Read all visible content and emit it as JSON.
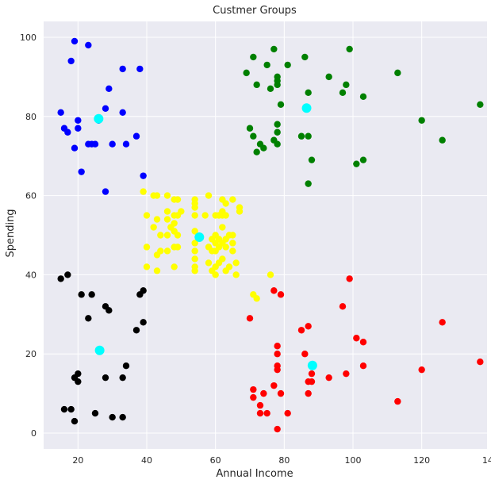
{
  "chart_data": {
    "type": "scatter",
    "title": "Custmer Groups",
    "xlabel": "Annual Income",
    "ylabel": "Spending",
    "xlim": [
      10,
      139
    ],
    "ylim": [
      -4,
      104
    ],
    "xticks": [
      20,
      40,
      60,
      80,
      100,
      120,
      140
    ],
    "yticks": [
      0,
      20,
      40,
      60,
      80,
      100
    ],
    "grid": true,
    "background": "#eaeaf2",
    "series": [
      {
        "color": "#0000ff",
        "points": [
          [
            19,
            99
          ],
          [
            23,
            98
          ],
          [
            18,
            94
          ],
          [
            33,
            92
          ],
          [
            38,
            92
          ],
          [
            29,
            87
          ],
          [
            28,
            82
          ],
          [
            33,
            81
          ],
          [
            15,
            81
          ],
          [
            20,
            79
          ],
          [
            26,
            79
          ],
          [
            16,
            77
          ],
          [
            20,
            77
          ],
          [
            17,
            76
          ],
          [
            37,
            75
          ],
          [
            23,
            73
          ],
          [
            24,
            73
          ],
          [
            25,
            73
          ],
          [
            30,
            73
          ],
          [
            34,
            73
          ],
          [
            19,
            72
          ],
          [
            21,
            66
          ],
          [
            39,
            65
          ],
          [
            28,
            61
          ]
        ]
      },
      {
        "color": "#008000",
        "points": [
          [
            77,
            97
          ],
          [
            99,
            97
          ],
          [
            71,
            95
          ],
          [
            86,
            95
          ],
          [
            75,
            93
          ],
          [
            81,
            93
          ],
          [
            69,
            91
          ],
          [
            113,
            91
          ],
          [
            78,
            90
          ],
          [
            93,
            90
          ],
          [
            78,
            89
          ],
          [
            72,
            88
          ],
          [
            78,
            88
          ],
          [
            98,
            88
          ],
          [
            76,
            87
          ],
          [
            87,
            86
          ],
          [
            97,
            86
          ],
          [
            103,
            85
          ],
          [
            79,
            83
          ],
          [
            137,
            83
          ],
          [
            120,
            79
          ],
          [
            78,
            78
          ],
          [
            70,
            77
          ],
          [
            78,
            76
          ],
          [
            71,
            75
          ],
          [
            85,
            75
          ],
          [
            87,
            75
          ],
          [
            77,
            74
          ],
          [
            126,
            74
          ],
          [
            73,
            73
          ],
          [
            78,
            73
          ],
          [
            74,
            72
          ],
          [
            72,
            71
          ],
          [
            88,
            69
          ],
          [
            103,
            69
          ],
          [
            101,
            68
          ],
          [
            87,
            63
          ]
        ]
      },
      {
        "color": "#ffff00",
        "points": [
          [
            39,
            61
          ],
          [
            42,
            60
          ],
          [
            43,
            60
          ],
          [
            46,
            60
          ],
          [
            58,
            60
          ],
          [
            54,
            59
          ],
          [
            48,
            59
          ],
          [
            49,
            59
          ],
          [
            62,
            59
          ],
          [
            65,
            59
          ],
          [
            63,
            58
          ],
          [
            54,
            58
          ],
          [
            67,
            57
          ],
          [
            67,
            56
          ],
          [
            46,
            56
          ],
          [
            54,
            57
          ],
          [
            62,
            56
          ],
          [
            50,
            56
          ],
          [
            60,
            55
          ],
          [
            62,
            55
          ],
          [
            40,
            55
          ],
          [
            43,
            54
          ],
          [
            46,
            54
          ],
          [
            48,
            55
          ],
          [
            49,
            55
          ],
          [
            54,
            55
          ],
          [
            57,
            55
          ],
          [
            61,
            55
          ],
          [
            63,
            55
          ],
          [
            48,
            53
          ],
          [
            42,
            52
          ],
          [
            62,
            52
          ],
          [
            47,
            52
          ],
          [
            48,
            51
          ],
          [
            54,
            51
          ],
          [
            46,
            50
          ],
          [
            44,
            50
          ],
          [
            49,
            50
          ],
          [
            60,
            50
          ],
          [
            64,
            50
          ],
          [
            65,
            50
          ],
          [
            59,
            49
          ],
          [
            61,
            49
          ],
          [
            63,
            49
          ],
          [
            65,
            48
          ],
          [
            60,
            48
          ],
          [
            62,
            48
          ],
          [
            54,
            48
          ],
          [
            48,
            47
          ],
          [
            40,
            47
          ],
          [
            49,
            47
          ],
          [
            58,
            47
          ],
          [
            61,
            47
          ],
          [
            63,
            47
          ],
          [
            44,
            46
          ],
          [
            46,
            46
          ],
          [
            54,
            46
          ],
          [
            59,
            46
          ],
          [
            60,
            46
          ],
          [
            43,
            45
          ],
          [
            65,
            46
          ],
          [
            54,
            44
          ],
          [
            62,
            44
          ],
          [
            58,
            43
          ],
          [
            61,
            43
          ],
          [
            66,
            43
          ],
          [
            60,
            42
          ],
          [
            64,
            42
          ],
          [
            48,
            42
          ],
          [
            59,
            41
          ],
          [
            40,
            42
          ],
          [
            54,
            42
          ],
          [
            43,
            41
          ],
          [
            54,
            41
          ],
          [
            63,
            41
          ],
          [
            60,
            40
          ],
          [
            66,
            40
          ],
          [
            76,
            40
          ],
          [
            71,
            35
          ],
          [
            72,
            34
          ]
        ]
      },
      {
        "color": "#ff0000",
        "points": [
          [
            99,
            39
          ],
          [
            77,
            36
          ],
          [
            79,
            35
          ],
          [
            97,
            32
          ],
          [
            70,
            29
          ],
          [
            126,
            28
          ],
          [
            87,
            27
          ],
          [
            85,
            26
          ],
          [
            101,
            24
          ],
          [
            103,
            23
          ],
          [
            78,
            22
          ],
          [
            78,
            20
          ],
          [
            86,
            20
          ],
          [
            78,
            17
          ],
          [
            103,
            17
          ],
          [
            88,
            15
          ],
          [
            98,
            15
          ],
          [
            120,
            16
          ],
          [
            78,
            16
          ],
          [
            93,
            14
          ],
          [
            87,
            13
          ],
          [
            88,
            13
          ],
          [
            77,
            12
          ],
          [
            71,
            11
          ],
          [
            79,
            10
          ],
          [
            87,
            10
          ],
          [
            71,
            9
          ],
          [
            113,
            8
          ],
          [
            73,
            7
          ],
          [
            73,
            5
          ],
          [
            75,
            5
          ],
          [
            81,
            5
          ],
          [
            74,
            10
          ],
          [
            78,
            1
          ],
          [
            137,
            18
          ]
        ]
      },
      {
        "color": "#000000",
        "points": [
          [
            17,
            40
          ],
          [
            15,
            39
          ],
          [
            39,
            36
          ],
          [
            38,
            35
          ],
          [
            21,
            35
          ],
          [
            24,
            35
          ],
          [
            28,
            32
          ],
          [
            29,
            31
          ],
          [
            39,
            28
          ],
          [
            23,
            29
          ],
          [
            37,
            26
          ],
          [
            34,
            17
          ],
          [
            20,
            15
          ],
          [
            19,
            14
          ],
          [
            28,
            14
          ],
          [
            33,
            14
          ],
          [
            20,
            13
          ],
          [
            16,
            6
          ],
          [
            18,
            6
          ],
          [
            25,
            5
          ],
          [
            30,
            4
          ],
          [
            33,
            4
          ],
          [
            19,
            3
          ]
        ]
      }
    ],
    "centroids": {
      "color": "#00ffff",
      "points": [
        [
          26,
          79.4
        ],
        [
          86.5,
          82.1
        ],
        [
          55.3,
          49.5
        ],
        [
          88.2,
          17.1
        ],
        [
          26.3,
          20.9
        ]
      ]
    }
  }
}
